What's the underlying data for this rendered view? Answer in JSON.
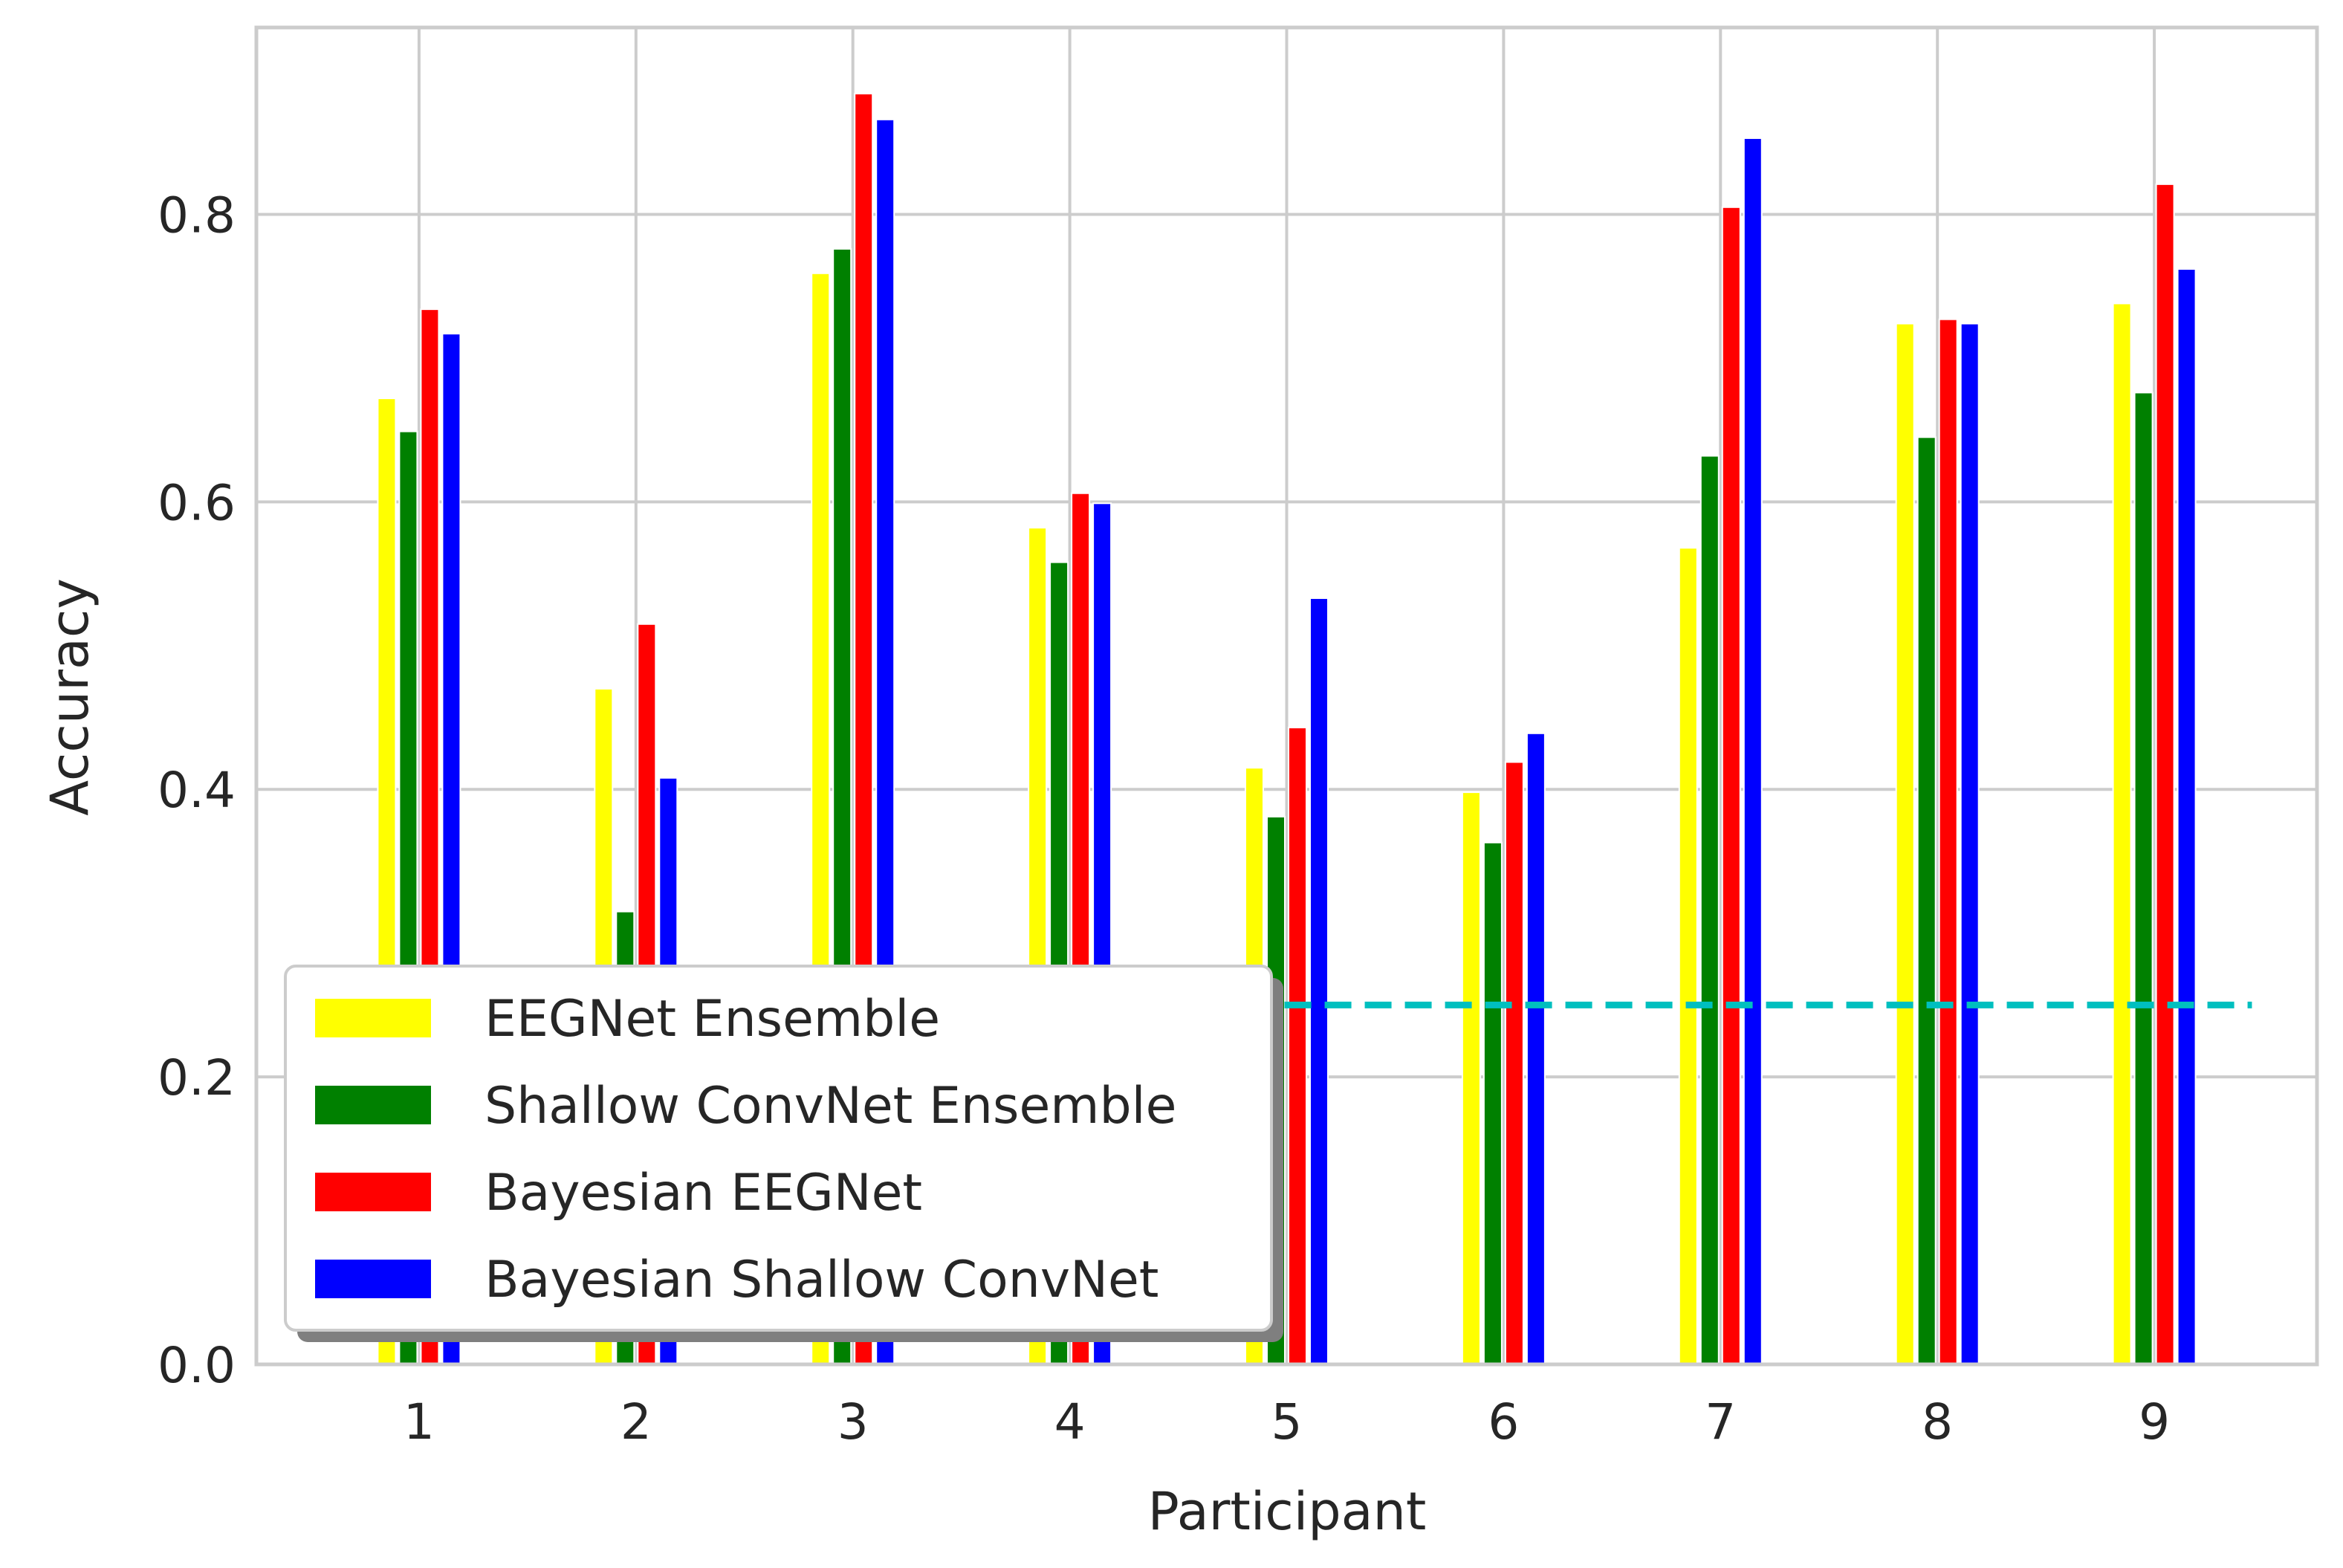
{
  "chart_data": {
    "type": "bar",
    "title": "",
    "xlabel": "Participant",
    "ylabel": "Accuracy",
    "categories": [
      "1",
      "2",
      "3",
      "4",
      "5",
      "6",
      "7",
      "8",
      "9"
    ],
    "ylim": [
      0,
      0.93
    ],
    "yticks": [
      0.0,
      0.2,
      0.4,
      0.6,
      0.8
    ],
    "ytick_labels": [
      "0.0",
      "0.2",
      "0.4",
      "0.6",
      "0.8"
    ],
    "grid": true,
    "legend_position": "lower-left",
    "series": [
      {
        "name": "EEGNet Ensemble",
        "color": "#ffff00",
        "values": [
          0.672,
          0.47,
          0.759,
          0.582,
          0.415,
          0.398,
          0.568,
          0.724,
          0.738
        ]
      },
      {
        "name": "Shallow ConvNet Ensemble",
        "color": "#008000",
        "values": [
          0.649,
          0.315,
          0.776,
          0.558,
          0.381,
          0.363,
          0.632,
          0.645,
          0.676
        ]
      },
      {
        "name": "Bayesian EEGNet",
        "color": "#ff0000",
        "values": [
          0.734,
          0.515,
          0.884,
          0.606,
          0.443,
          0.419,
          0.805,
          0.727,
          0.821
        ]
      },
      {
        "name": "Bayesian Shallow ConvNet",
        "color": "#0000ff",
        "values": [
          0.717,
          0.408,
          0.866,
          0.599,
          0.533,
          0.439,
          0.853,
          0.724,
          0.762
        ]
      }
    ],
    "reference_line": {
      "value": 0.25,
      "color": "#00bfbf",
      "style": "dashed"
    }
  }
}
